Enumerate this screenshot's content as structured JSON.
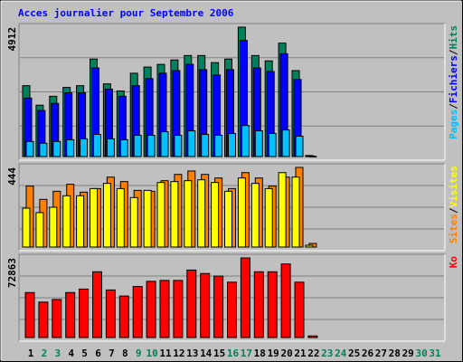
{
  "chart_data": [
    {
      "type": "bar",
      "title": "Acces journalier pour Septembre 2006",
      "legend_separator": "/",
      "x": [
        1,
        2,
        3,
        4,
        5,
        6,
        7,
        8,
        9,
        10,
        11,
        12,
        13,
        14,
        15,
        16,
        17,
        18,
        19,
        20,
        21,
        22,
        23,
        24,
        25,
        26,
        27,
        28,
        29,
        30,
        31
      ],
      "ylim": [
        0,
        4912
      ],
      "yticks": [
        4912
      ],
      "series": [
        {
          "name": "Hits",
          "color": "#00805c",
          "values": [
            2691,
            1951,
            2288,
            2624,
            2691,
            3701,
            2759,
            2490,
            3162,
            3398,
            3499,
            3667,
            3835,
            3835,
            3566,
            3701,
            4912,
            3835,
            3633,
            4306,
            3263,
            40,
            0,
            0,
            0,
            0,
            0,
            0,
            0,
            0,
            0
          ]
        },
        {
          "name": "Fichiers",
          "color": "#0000ff",
          "values": [
            2220,
            1749,
            2018,
            2422,
            2422,
            3364,
            2557,
            2288,
            2691,
            2960,
            3162,
            3263,
            3499,
            3297,
            3095,
            3297,
            4407,
            3364,
            3230,
            3902,
            2927,
            20,
            0,
            0,
            0,
            0,
            0,
            0,
            0,
            0,
            0
          ]
        },
        {
          "name": "Pages",
          "color": "#00c0ff",
          "values": [
            572,
            505,
            572,
            639,
            673,
            841,
            673,
            639,
            807,
            807,
            942,
            807,
            976,
            841,
            807,
            875,
            1177,
            976,
            875,
            1009,
            774,
            5,
            0,
            0,
            0,
            0,
            0,
            0,
            0,
            0,
            0
          ]
        }
      ]
    },
    {
      "type": "bar",
      "x": [
        1,
        2,
        3,
        4,
        5,
        6,
        7,
        8,
        9,
        10,
        11,
        12,
        13,
        14,
        15,
        16,
        17,
        18,
        19,
        20,
        21,
        22,
        23,
        24,
        25,
        26,
        27,
        28,
        29,
        30,
        31
      ],
      "ylim": [
        0,
        444
      ],
      "yticks": [
        444
      ],
      "series": [
        {
          "name": "Sites",
          "color": "#ff8000",
          "values": [
            340,
            266,
            311,
            350,
            306,
            326,
            390,
            365,
            316,
            311,
            370,
            405,
            424,
            405,
            385,
            326,
            415,
            385,
            340,
            390,
            444,
            20,
            0,
            0,
            0,
            0,
            0,
            0,
            0,
            0,
            0
          ]
        },
        {
          "name": "Visites",
          "color": "#ffff00",
          "values": [
            217,
            192,
            222,
            286,
            286,
            326,
            355,
            326,
            276,
            316,
            360,
            365,
            370,
            375,
            360,
            311,
            385,
            355,
            326,
            415,
            390,
            10,
            0,
            0,
            0,
            0,
            0,
            0,
            0,
            0,
            0
          ]
        }
      ]
    },
    {
      "type": "bar",
      "x": [
        1,
        2,
        3,
        4,
        5,
        6,
        7,
        8,
        9,
        10,
        11,
        12,
        13,
        14,
        15,
        16,
        17,
        18,
        19,
        20,
        21,
        22,
        23,
        24,
        25,
        26,
        27,
        28,
        29,
        30,
        31
      ],
      "ylim": [
        0,
        72863
      ],
      "yticks": [
        72863
      ],
      "highlight_x": [
        2,
        3,
        9,
        10,
        16,
        17,
        23,
        24,
        30,
        31
      ],
      "highlight_color": "#00805c",
      "series": [
        {
          "name": "Ko",
          "color": "#ff0000",
          "values": [
            41184,
            32472,
            34848,
            41184,
            44352,
            60192,
            43560,
            38016,
            46728,
            51480,
            52272,
            52272,
            61776,
            58608,
            56232,
            50688,
            72863,
            60192,
            60192,
            67320,
            50688,
            1500,
            0,
            0,
            0,
            0,
            0,
            0,
            0,
            0,
            0
          ]
        }
      ]
    }
  ]
}
